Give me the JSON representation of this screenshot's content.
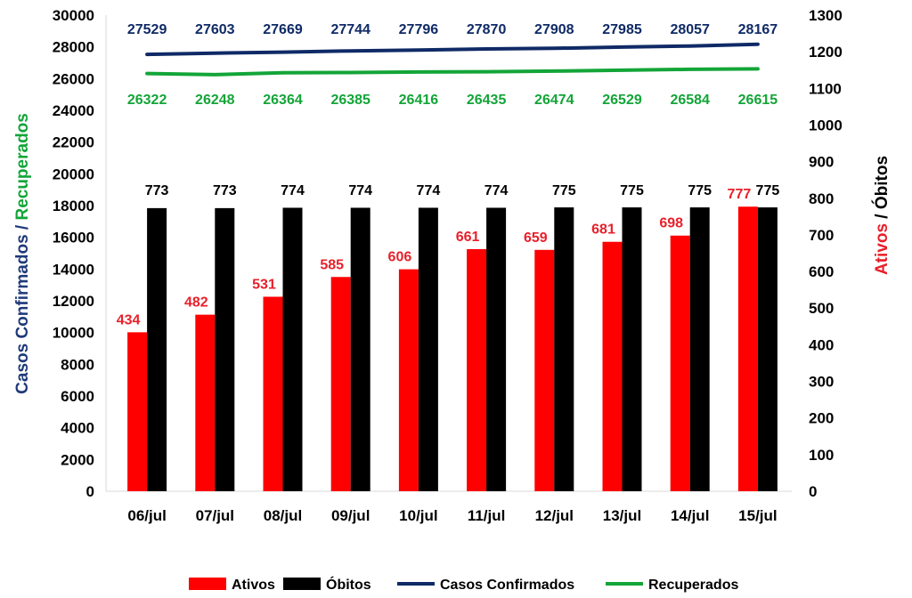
{
  "chart_data": {
    "type": "bar",
    "categories": [
      "06/jul",
      "07/jul",
      "08/jul",
      "09/jul",
      "10/jul",
      "11/jul",
      "12/jul",
      "13/jul",
      "14/jul",
      "15/jul"
    ],
    "bar_series": [
      {
        "name": "Ativos",
        "color": "#ff0000",
        "label_color": "#e8202a",
        "axis": "right",
        "values": [
          434,
          482,
          531,
          585,
          606,
          661,
          659,
          681,
          698,
          777
        ]
      },
      {
        "name": "Óbitos",
        "color": "#000000",
        "label_color": "#000000",
        "axis": "right",
        "values": [
          773,
          773,
          774,
          774,
          774,
          774,
          775,
          775,
          775,
          775
        ]
      }
    ],
    "line_series": [
      {
        "name": "Casos Confirmados",
        "color": "#0f2a66",
        "axis": "left",
        "values": [
          27529,
          27603,
          27669,
          27744,
          27796,
          27870,
          27908,
          27985,
          28057,
          28167
        ]
      },
      {
        "name": "Recuperados",
        "color": "#13a538",
        "axis": "left",
        "values": [
          26322,
          26248,
          26364,
          26385,
          26416,
          26435,
          26474,
          26529,
          26584,
          26615
        ]
      }
    ],
    "left_axis": {
      "title_part1": "Casos Confirmados",
      "title_sep": " / ",
      "title_part2": "Recuperados",
      "title_part1_color": "#1f3a7a",
      "title_part2_color": "#13a538",
      "ylim": [
        0,
        30000
      ],
      "ticks": [
        0,
        2000,
        4000,
        6000,
        8000,
        10000,
        12000,
        14000,
        16000,
        18000,
        20000,
        22000,
        24000,
        26000,
        28000,
        30000
      ]
    },
    "right_axis": {
      "title_part1": "Ativos",
      "title_sep": " / ",
      "title_part2": "Óbitos",
      "title_part1_color": "#e8202a",
      "title_part2_color": "#000000",
      "ylim": [
        0,
        1300
      ],
      "ticks": [
        0,
        100,
        200,
        300,
        400,
        500,
        600,
        700,
        800,
        900,
        1000,
        1100,
        1200,
        1300
      ]
    },
    "grid": false,
    "legend_position": "bottom",
    "legend": [
      "Ativos",
      "Óbitos",
      "Casos Confirmados",
      "Recuperados"
    ]
  }
}
